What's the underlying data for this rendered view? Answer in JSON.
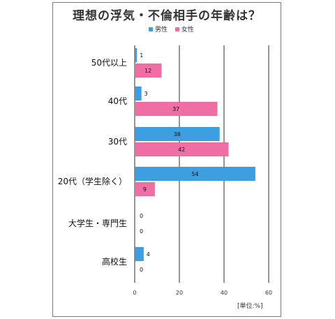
{
  "chart_data": {
    "type": "bar",
    "orientation": "horizontal",
    "title": "理想の浮気・不倫相手の年齢は？",
    "categories": [
      "50代以上",
      "40代",
      "30代",
      "20代（学生除く）",
      "大学生・専門生",
      "高校生"
    ],
    "series": [
      {
        "name": "男性",
        "color": "#3d9fe0",
        "values": [
          1,
          3,
          38,
          54,
          0,
          4
        ]
      },
      {
        "name": "女性",
        "color": "#ef6fa4",
        "values": [
          12,
          37,
          42,
          9,
          0,
          0
        ]
      }
    ],
    "x_ticks": [
      "0",
      "20",
      "40",
      "60"
    ],
    "xlim": [
      0,
      60
    ],
    "grid": true,
    "legend": "top-right",
    "unit": "[単位:%]"
  }
}
